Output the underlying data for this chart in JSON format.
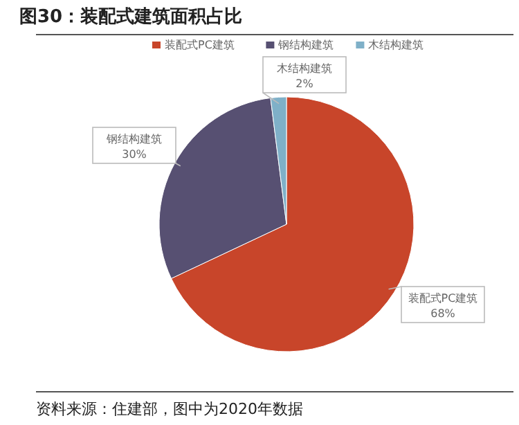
{
  "chart_data": {
    "type": "pie",
    "title": "图30：装配式建筑面积占比",
    "categories": [
      "装配式PC建筑",
      "钢结构建筑",
      "木结构建筑"
    ],
    "values": [
      68,
      30,
      2
    ],
    "value_labels": [
      "68%",
      "30%",
      "2%"
    ],
    "colors": [
      "#c8452a",
      "#575072",
      "#7fb0c8"
    ],
    "legend": "top",
    "annotations": [
      "资料来源：住建部，图中为2020年数据"
    ]
  }
}
